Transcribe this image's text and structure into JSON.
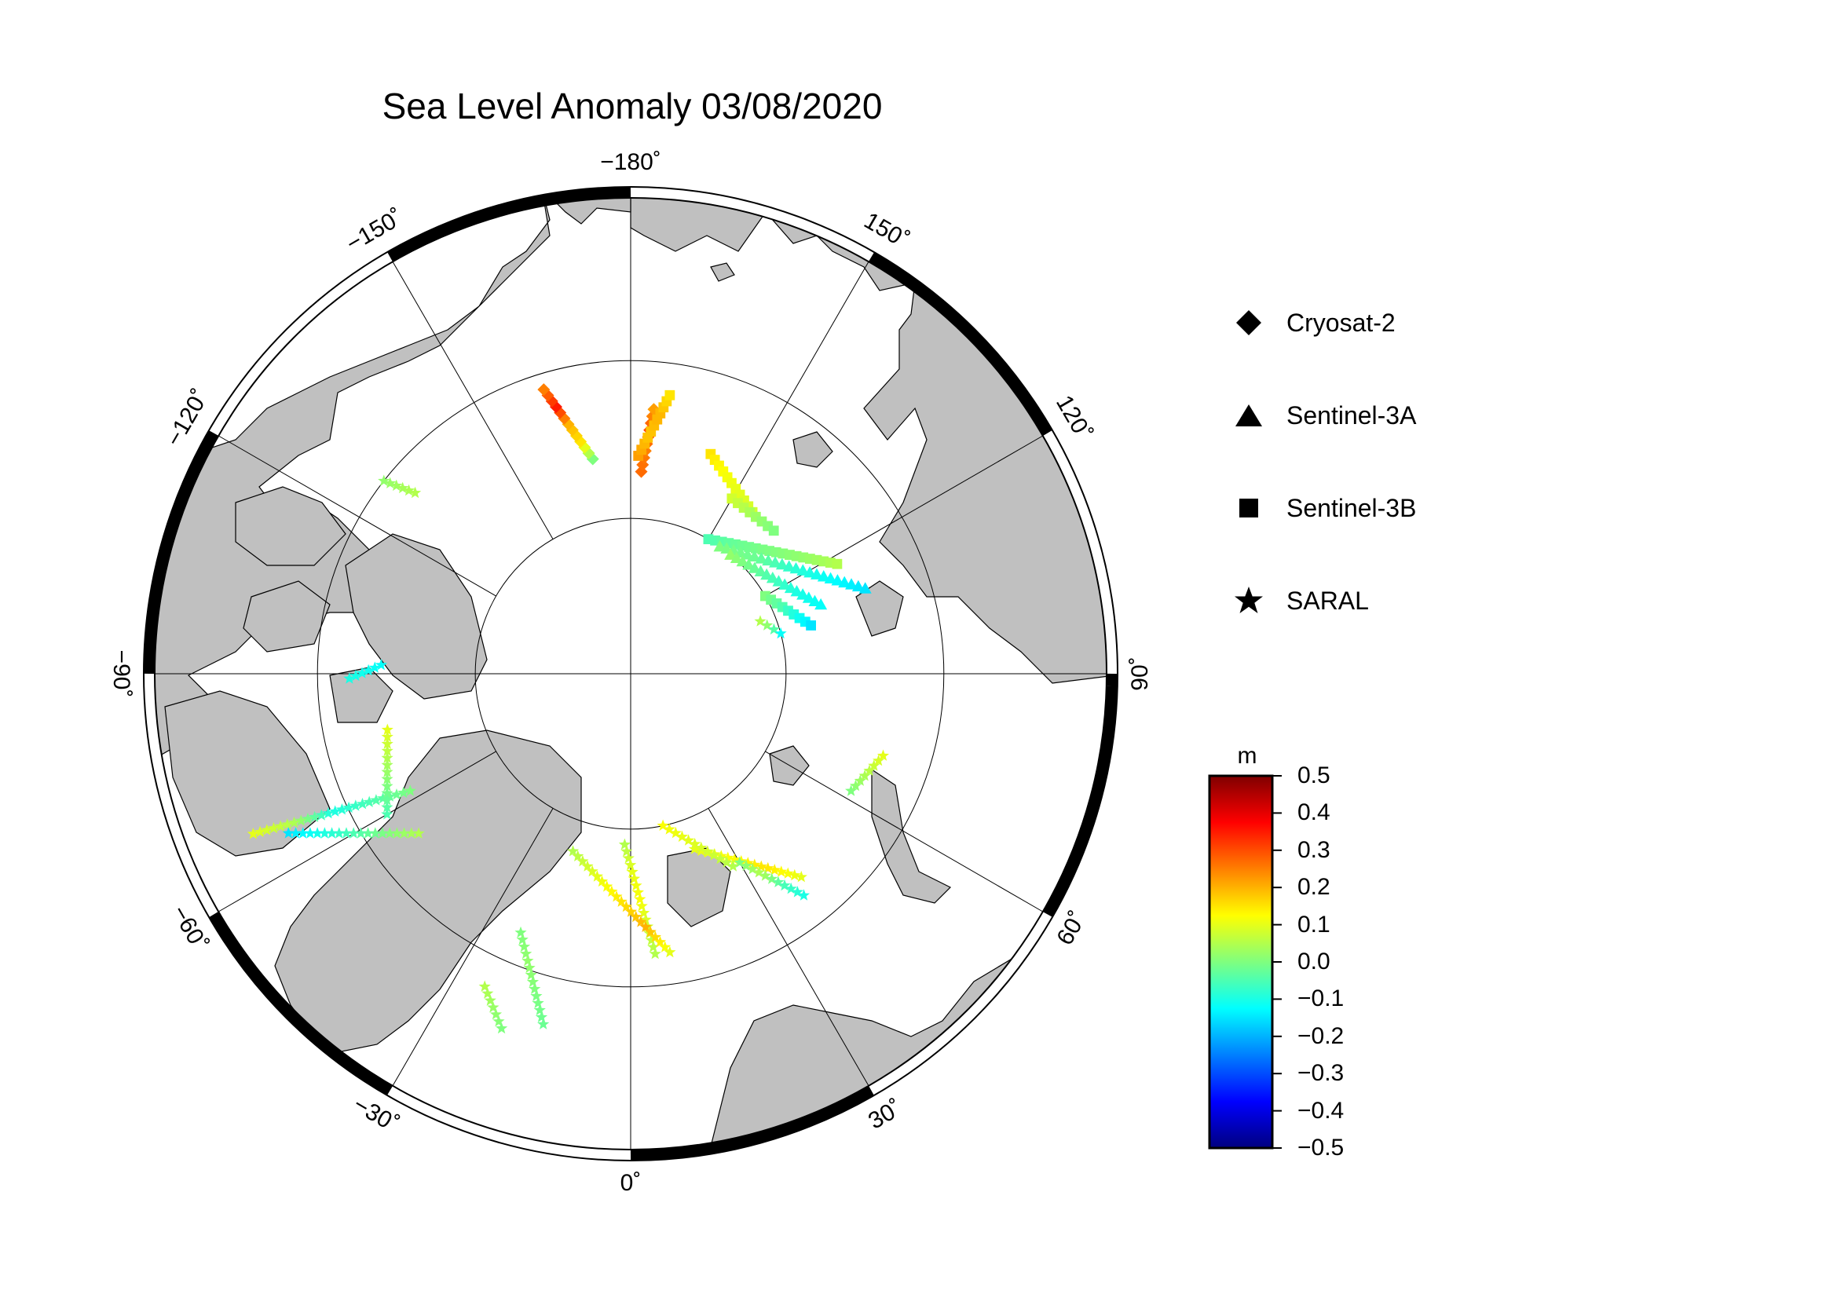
{
  "title": "Sea Level Anomaly 03/08/2020",
  "map": {
    "projection": "north-polar-stereographic",
    "center": "North Pole",
    "longitude_labels": [
      {
        "lon": -180,
        "text": "−180˚"
      },
      {
        "lon": 150,
        "text": "150˚"
      },
      {
        "lon": 120,
        "text": "120˚"
      },
      {
        "lon": 90,
        "text": "90˚"
      },
      {
        "lon": 60,
        "text": "60˚"
      },
      {
        "lon": 30,
        "text": "30˚"
      },
      {
        "lon": 0,
        "text": "0˚"
      },
      {
        "lon": -30,
        "text": "−30˚"
      },
      {
        "lon": -60,
        "text": "−60˚"
      },
      {
        "lon": -90,
        "text": "−90˚"
      },
      {
        "lon": -120,
        "text": "−120˚"
      },
      {
        "lon": -150,
        "text": "−150˚"
      }
    ],
    "land_color": "#c0c0c0",
    "ocean_color": "#ffffff"
  },
  "legend": {
    "items": [
      {
        "symbol": "diamond",
        "label": "Cryosat-2"
      },
      {
        "symbol": "triangle",
        "label": "Sentinel-3A"
      },
      {
        "symbol": "square",
        "label": "Sentinel-3B"
      },
      {
        "symbol": "star",
        "label": "SARAL"
      }
    ]
  },
  "colorbar": {
    "unit": "m",
    "min": -0.5,
    "max": 0.5,
    "ticks": [
      "0.5",
      "0.4",
      "0.3",
      "0.2",
      "0.1",
      "0.0",
      "−0.1",
      "−0.2",
      "−0.3",
      "−0.4",
      "−0.5"
    ],
    "colormap": [
      "#00007f",
      "#0000ff",
      "#007fff",
      "#00ffff",
      "#7fff7f",
      "#ffff00",
      "#ff7f00",
      "#ff0000",
      "#7f0000"
    ]
  },
  "tracks": [
    {
      "satellite": "Cryosat-2",
      "from": {
        "lon": 177,
        "lat": 77
      },
      "to": {
        "lon": 175,
        "lat": 73
      },
      "sla": [
        0.27,
        0.25,
        0.3,
        0.22
      ]
    },
    {
      "satellite": "Cryosat-2",
      "from": {
        "lon": -170,
        "lat": 76
      },
      "to": {
        "lon": -163,
        "lat": 71
      },
      "sla": [
        0.0,
        0.15,
        0.2,
        0.35,
        0.25
      ]
    },
    {
      "satellite": "Sentinel-3B",
      "from": {
        "lon": 178,
        "lat": 76
      },
      "to": {
        "lon": 172,
        "lat": 72
      },
      "sla": [
        0.22,
        0.18,
        0.2,
        0.15
      ]
    },
    {
      "satellite": "Sentinel-3B",
      "from": {
        "lon": 160,
        "lat": 75
      },
      "to": {
        "lon": 143,
        "lat": 77
      },
      "sla": [
        0.15,
        0.12,
        0.1,
        0.08
      ]
    },
    {
      "satellite": "Sentinel-3B",
      "from": {
        "lon": 150,
        "lat": 77
      },
      "to": {
        "lon": 135,
        "lat": 77
      },
      "sla": [
        0.08,
        0.05,
        0.02,
        0.0
      ]
    },
    {
      "satellite": "Sentinel-3B",
      "from": {
        "lon": 150,
        "lat": 80
      },
      "to": {
        "lon": 118,
        "lat": 75
      },
      "sla": [
        -0.05,
        -0.02,
        0.0,
        0.02,
        0.05
      ]
    },
    {
      "satellite": "Sentinel-3A",
      "from": {
        "lon": 145,
        "lat": 80
      },
      "to": {
        "lon": 110,
        "lat": 74
      },
      "sla": [
        0.0,
        -0.02,
        -0.08,
        -0.12,
        -0.15
      ]
    },
    {
      "satellite": "Sentinel-3A",
      "from": {
        "lon": 140,
        "lat": 80
      },
      "to": {
        "lon": 110,
        "lat": 77
      },
      "sla": [
        0.02,
        -0.02,
        -0.06,
        -0.1,
        -0.12
      ]
    },
    {
      "satellite": "Sentinel-3B",
      "from": {
        "lon": 120,
        "lat": 80
      },
      "to": {
        "lon": 105,
        "lat": 78
      },
      "sla": [
        0.0,
        -0.04,
        -0.1,
        -0.15
      ]
    },
    {
      "satellite": "SARAL",
      "from": {
        "lon": 112,
        "lat": 81
      },
      "to": {
        "lon": 105,
        "lat": 80
      },
      "sla": [
        0.05,
        0.0,
        -0.12
      ]
    },
    {
      "satellite": "SARAL",
      "from": {
        "lon": -2,
        "lat": 79
      },
      "to": {
        "lon": 5,
        "lat": 72
      },
      "sla": [
        0.05,
        0.1,
        0.12,
        0.08,
        0.05
      ]
    },
    {
      "satellite": "SARAL",
      "from": {
        "lon": -18,
        "lat": 78
      },
      "to": {
        "lon": 8,
        "lat": 72
      },
      "sla": [
        0.05,
        0.1,
        0.15,
        0.2,
        0.1
      ]
    },
    {
      "satellite": "SARAL",
      "from": {
        "lon": 20,
        "lat": 78
      },
      "to": {
        "lon": 40,
        "lat": 73
      },
      "sla": [
        0.1,
        0.12,
        0.15,
        0.1
      ]
    },
    {
      "satellite": "SARAL",
      "from": {
        "lon": 30,
        "lat": 76
      },
      "to": {
        "lon": 38,
        "lat": 72
      },
      "sla": [
        0.0,
        0.05,
        -0.05,
        -0.1
      ]
    },
    {
      "satellite": "SARAL",
      "from": {
        "lon": 12,
        "lat": 80
      },
      "to": {
        "lon": 28,
        "lat": 76
      },
      "sla": [
        0.12,
        0.1,
        0.08,
        0.05
      ]
    },
    {
      "satellite": "SARAL",
      "from": {
        "lon": 62,
        "lat": 74
      },
      "to": {
        "lon": 72,
        "lat": 73
      },
      "sla": [
        0.0,
        0.05,
        0.1
      ]
    },
    {
      "satellite": "SARAL",
      "from": {
        "lon": -62,
        "lat": 74
      },
      "to": {
        "lon": -67,
        "lat": 64
      },
      "sla": [
        0.0,
        -0.05,
        -0.1,
        0.05,
        0.1
      ]
    },
    {
      "satellite": "SARAL",
      "from": {
        "lon": -53,
        "lat": 73
      },
      "to": {
        "lon": -65,
        "lat": 66
      },
      "sla": [
        0.05,
        0.0,
        -0.05,
        -0.1,
        -0.15
      ]
    },
    {
      "satellite": "SARAL",
      "from": {
        "lon": -77,
        "lat": 74
      },
      "to": {
        "lon": -60,
        "lat": 72
      },
      "sla": [
        0.1,
        0.05,
        0.0,
        -0.05
      ]
    },
    {
      "satellite": "SARAL",
      "from": {
        "lon": -25,
        "lat": 68
      },
      "to": {
        "lon": -20,
        "lat": 66
      },
      "sla": [
        0.05,
        0.0
      ]
    },
    {
      "satellite": "SARAL",
      "from": {
        "lon": -23,
        "lat": 72
      },
      "to": {
        "lon": -14,
        "lat": 67
      },
      "sla": [
        0.0,
        0.02,
        0.0,
        -0.02
      ]
    },
    {
      "satellite": "SARAL",
      "from": {
        "lon": -130,
        "lat": 72
      },
      "to": {
        "lon": -128,
        "lat": 70
      },
      "sla": [
        0.05,
        0.02
      ]
    },
    {
      "satellite": "SARAL",
      "from": {
        "lon": -92,
        "lat": 74
      },
      "to": {
        "lon": -89,
        "lat": 72
      },
      "sla": [
        -0.12,
        -0.1
      ]
    }
  ]
}
